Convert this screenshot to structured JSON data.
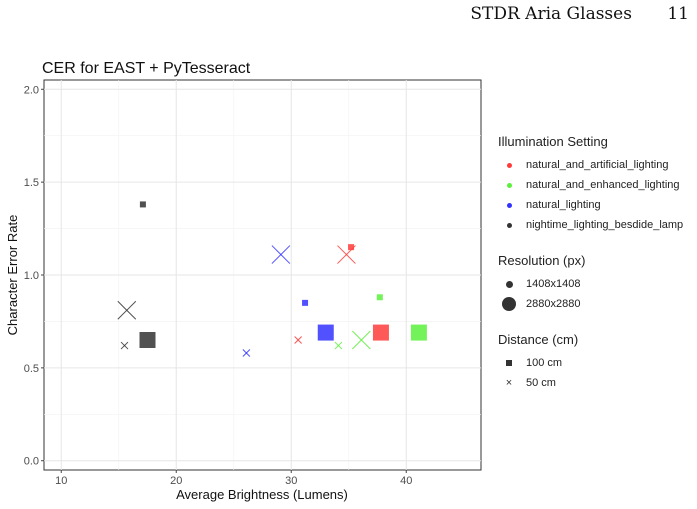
{
  "header": {
    "running_title": "STDR Aria Glasses",
    "page_number": "11"
  },
  "chart_data": {
    "type": "scatter",
    "title": "CER for EAST + PyTesseract",
    "xlabel": "Average Brightness (Lumens)",
    "ylabel": "Character Error Rate",
    "xlim": [
      8.5,
      46.5
    ],
    "ylim": [
      -0.05,
      2.05
    ],
    "xticks": [
      10,
      20,
      30,
      40
    ],
    "yticks": [
      0.0,
      0.5,
      1.0,
      1.5,
      2.0
    ],
    "ytick_labels": [
      "0.0",
      "0.5",
      "1.0",
      "1.5",
      "2.0"
    ],
    "grid": true,
    "legend_position": "right",
    "legend": {
      "color_title": "Illumination Setting",
      "color_items": [
        {
          "label": "natural_and_artificial_lighting",
          "color": "#ff3b3b"
        },
        {
          "label": "natural_and_enhanced_lighting",
          "color": "#5cf03c"
        },
        {
          "label": "natural_lighting",
          "color": "#3333ff"
        },
        {
          "label": "nightime_lighting_besdide_lamp",
          "color": "#333333"
        }
      ],
      "size_title": "Resolution (px)",
      "size_items": [
        "1408x1408",
        "2880x2880"
      ],
      "shape_title": "Distance (cm)",
      "shape_items": [
        "100 cm",
        "50 cm"
      ]
    },
    "points": [
      {
        "x": 35.2,
        "y": 1.15,
        "setting": "natural_and_artificial_lighting",
        "resolution": "1408x1408",
        "distance": "100 cm"
      },
      {
        "x": 30.6,
        "y": 0.65,
        "setting": "natural_and_artificial_lighting",
        "resolution": "1408x1408",
        "distance": "50 cm"
      },
      {
        "x": 34.8,
        "y": 1.11,
        "setting": "natural_and_artificial_lighting",
        "resolution": "2880x2880",
        "distance": "50 cm"
      },
      {
        "x": 37.8,
        "y": 0.69,
        "setting": "natural_and_artificial_lighting",
        "resolution": "2880x2880",
        "distance": "100 cm"
      },
      {
        "x": 37.7,
        "y": 0.88,
        "setting": "natural_and_enhanced_lighting",
        "resolution": "1408x1408",
        "distance": "100 cm"
      },
      {
        "x": 34.1,
        "y": 0.62,
        "setting": "natural_and_enhanced_lighting",
        "resolution": "1408x1408",
        "distance": "50 cm"
      },
      {
        "x": 36.1,
        "y": 0.65,
        "setting": "natural_and_enhanced_lighting",
        "resolution": "2880x2880",
        "distance": "50 cm"
      },
      {
        "x": 41.1,
        "y": 0.69,
        "setting": "natural_and_enhanced_lighting",
        "resolution": "2880x2880",
        "distance": "100 cm"
      },
      {
        "x": 31.2,
        "y": 0.85,
        "setting": "natural_lighting",
        "resolution": "1408x1408",
        "distance": "100 cm"
      },
      {
        "x": 26.1,
        "y": 0.58,
        "setting": "natural_lighting",
        "resolution": "1408x1408",
        "distance": "50 cm"
      },
      {
        "x": 29.1,
        "y": 1.11,
        "setting": "natural_lighting",
        "resolution": "2880x2880",
        "distance": "50 cm"
      },
      {
        "x": 33.0,
        "y": 0.69,
        "setting": "natural_lighting",
        "resolution": "2880x2880",
        "distance": "100 cm"
      },
      {
        "x": 17.1,
        "y": 1.38,
        "setting": "nightime_lighting_besdide_lamp",
        "resolution": "1408x1408",
        "distance": "100 cm"
      },
      {
        "x": 15.5,
        "y": 0.62,
        "setting": "nightime_lighting_besdide_lamp",
        "resolution": "1408x1408",
        "distance": "50 cm"
      },
      {
        "x": 15.7,
        "y": 0.81,
        "setting": "nightime_lighting_besdide_lamp",
        "resolution": "2880x2880",
        "distance": "50 cm"
      },
      {
        "x": 17.5,
        "y": 0.65,
        "setting": "nightime_lighting_besdide_lamp",
        "resolution": "2880x2880",
        "distance": "100 cm"
      }
    ]
  }
}
